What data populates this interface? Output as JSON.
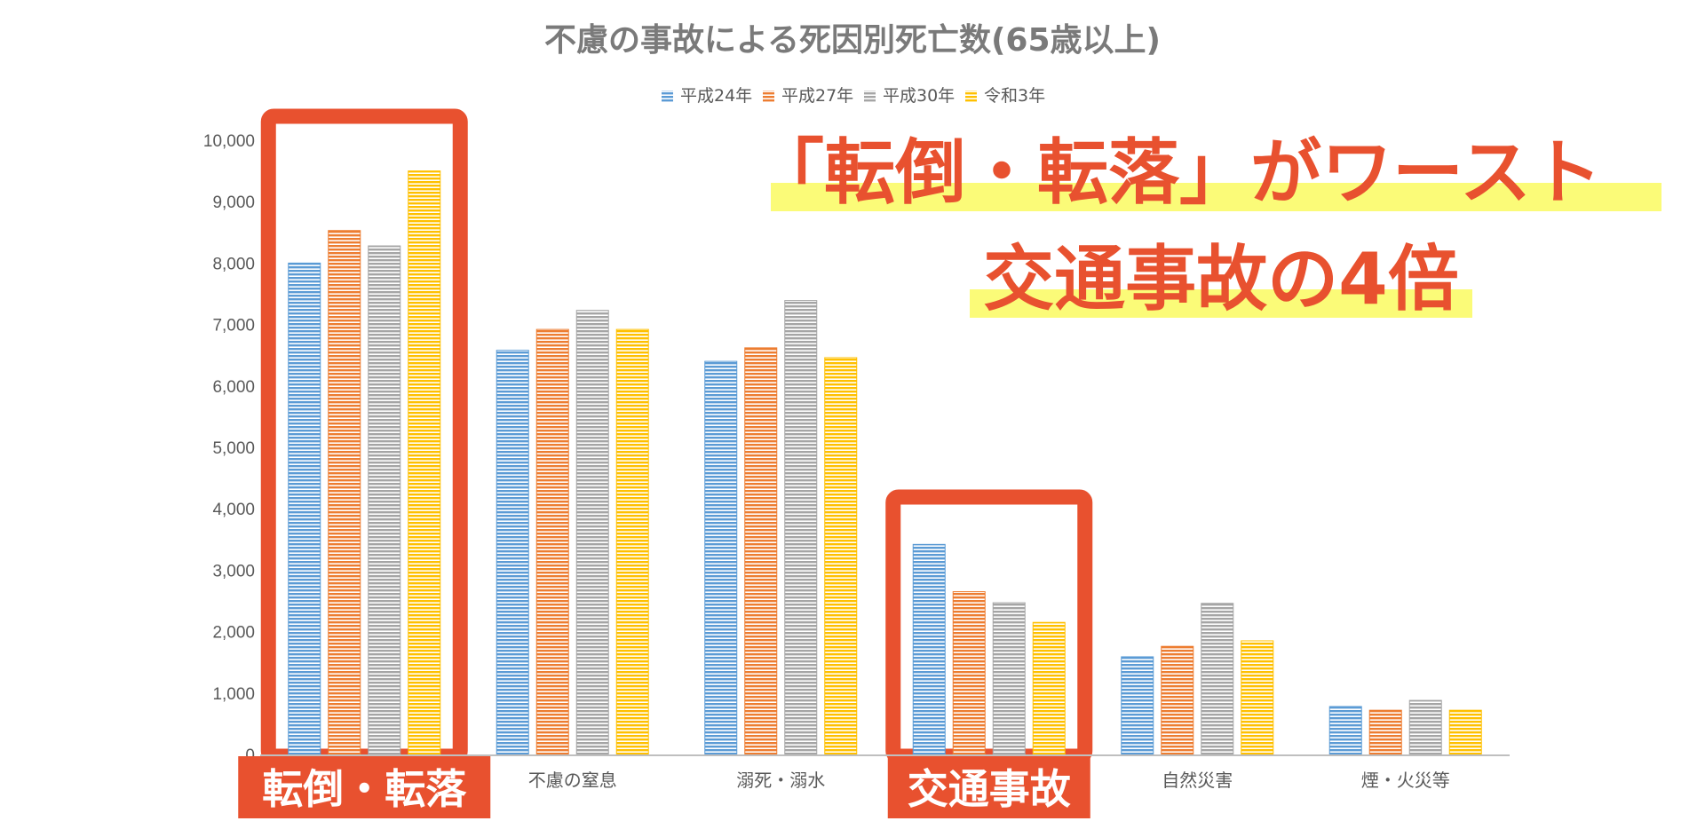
{
  "chart_data": {
    "type": "bar",
    "title": "不慮の事故による死因別死亡数(65歳以上)",
    "categories": [
      "転倒・転落",
      "不慮の窒息",
      "溺死・溺水",
      "交通事故",
      "自然災害",
      "煙・火災等"
    ],
    "series": [
      {
        "name": "平成24年",
        "color": "#5b9bd5",
        "values": [
          8000,
          6580,
          6400,
          3420,
          1590,
          780
        ]
      },
      {
        "name": "平成27年",
        "color": "#ed7d31",
        "values": [
          8530,
          6920,
          6620,
          2650,
          1760,
          720
        ]
      },
      {
        "name": "平成30年",
        "color": "#a5a5a5",
        "values": [
          8280,
          7230,
          7390,
          2470,
          2460,
          880
        ]
      },
      {
        "name": "令和3年",
        "color": "#ffc000",
        "values": [
          9500,
          6920,
          6460,
          2150,
          1850,
          720
        ]
      }
    ],
    "ylim": [
      0,
      10000
    ],
    "yticks": [
      "0",
      "1,000",
      "2,000",
      "3,000",
      "4,000",
      "5,000",
      "6,000",
      "7,000",
      "8,000",
      "9,000",
      "10,000"
    ],
    "xlabel": "",
    "ylabel": "",
    "legend_position": "top",
    "grid": false,
    "highlighted_categories": [
      0,
      3
    ],
    "category_labels_boxed": [
      "転倒・転落",
      "交通事故"
    ],
    "annotations": [
      "「転倒・転落」がワースト",
      "交通事故の4倍"
    ]
  },
  "colors": {
    "accent": "#e8512f",
    "highlight_marker": "#fbfb78"
  }
}
